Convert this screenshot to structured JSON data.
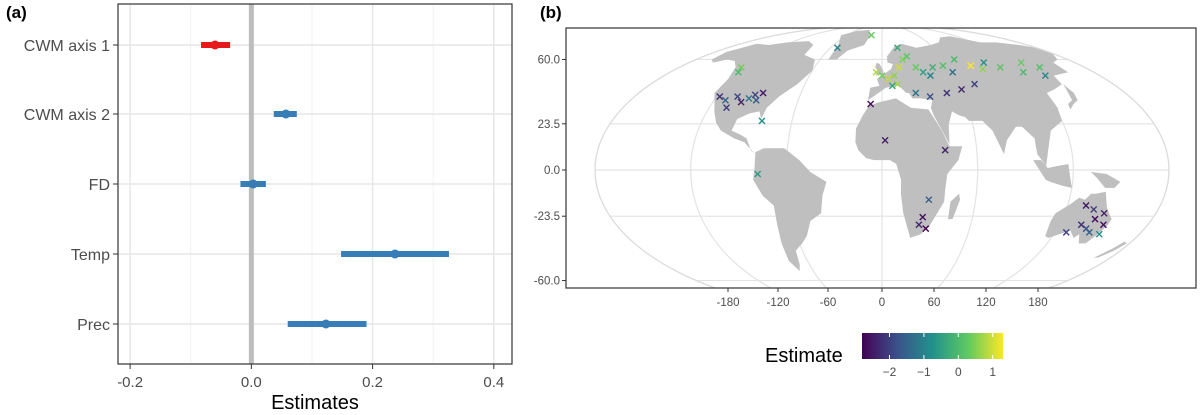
{
  "chart_data": [
    {
      "panel": "(a)",
      "type": "forest",
      "xlabel": "Estimates",
      "xlim": [
        -0.22,
        0.43
      ],
      "xticks": [
        -0.2,
        0.0,
        0.2,
        0.4
      ],
      "xtick_labels": [
        "-0.2",
        "0.0",
        "0.2",
        "0.4"
      ],
      "reference_line": 0.0,
      "grid": true,
      "rows": [
        {
          "label": "CWM axis 1",
          "estimate": -0.06,
          "low": -0.083,
          "high": -0.035,
          "color": "#e41a1c"
        },
        {
          "label": "CWM axis 2",
          "estimate": 0.057,
          "low": 0.037,
          "high": 0.075,
          "color": "#377eb8"
        },
        {
          "label": "FD",
          "estimate": 0.003,
          "low": -0.018,
          "high": 0.024,
          "color": "#377eb8"
        },
        {
          "label": "Temp",
          "estimate": 0.237,
          "low": 0.148,
          "high": 0.326,
          "color": "#377eb8"
        },
        {
          "label": "Prec",
          "estimate": 0.123,
          "low": 0.06,
          "high": 0.19,
          "color": "#377eb8"
        }
      ]
    },
    {
      "panel": "(b)",
      "type": "map",
      "projection": "mollweide",
      "lat_ticks": [
        60.0,
        23.5,
        0.0,
        -23.5,
        -60.0
      ],
      "lat_tick_labels": [
        "60.0",
        "23.5",
        "0.0",
        "-23.5",
        "-60.0"
      ],
      "lon_ticks": [
        -180,
        -120,
        -60,
        0,
        60,
        120,
        180
      ],
      "lon_tick_labels": [
        "-180",
        "-120",
        "-60",
        "0",
        "60",
        "120",
        "180"
      ],
      "legend": {
        "title": "Estimate",
        "range": [
          -2.8,
          1.3
        ],
        "ticks": [
          -2,
          -1,
          0,
          1
        ],
        "tick_labels": [
          "−2",
          "−1",
          "0",
          "1"
        ],
        "colors": [
          "#440154",
          "#3b528b",
          "#21918c",
          "#5ec962",
          "#fde725"
        ]
      },
      "points": [
        {
          "lon": -125,
          "lat": 55,
          "value": 0.4
        },
        {
          "lon": -122,
          "lat": 52,
          "value": 0.0
        },
        {
          "lon": -118,
          "lat": 38,
          "value": -2.2
        },
        {
          "lon": -112,
          "lat": 36,
          "value": -1.5
        },
        {
          "lon": -105,
          "lat": 38,
          "value": -1.9
        },
        {
          "lon": -100,
          "lat": 35,
          "value": -2.4
        },
        {
          "lon": -96,
          "lat": 37,
          "value": -1.2
        },
        {
          "lon": -93,
          "lat": 39,
          "value": -2.0
        },
        {
          "lon": -90,
          "lat": 36,
          "value": -1.6
        },
        {
          "lon": -88,
          "lat": 40,
          "value": -2.5
        },
        {
          "lon": -108,
          "lat": 32,
          "value": -2.1
        },
        {
          "lon": -80,
          "lat": 25,
          "value": -0.8
        },
        {
          "lon": -78,
          "lat": -2,
          "value": -0.6
        },
        {
          "lon": -52,
          "lat": 68,
          "value": -1.0
        },
        {
          "lon": -18,
          "lat": 78,
          "value": 0.3
        },
        {
          "lon": -5,
          "lat": 52,
          "value": 0.8
        },
        {
          "lon": 0,
          "lat": 50,
          "value": 0.4
        },
        {
          "lon": 5,
          "lat": 48,
          "value": 0.9
        },
        {
          "lon": 10,
          "lat": 50,
          "value": 0.6
        },
        {
          "lon": 15,
          "lat": 55,
          "value": 1.0
        },
        {
          "lon": 20,
          "lat": 60,
          "value": 0.5
        },
        {
          "lon": 25,
          "lat": 62,
          "value": 0.2
        },
        {
          "lon": 18,
          "lat": 68,
          "value": -0.3
        },
        {
          "lon": 12,
          "lat": 45,
          "value": 0.7
        },
        {
          "lon": 8,
          "lat": 44,
          "value": -0.4
        },
        {
          "lon": 30,
          "lat": 55,
          "value": 0.3
        },
        {
          "lon": 35,
          "lat": 52,
          "value": -0.5
        },
        {
          "lon": 40,
          "lat": 50,
          "value": -1.0
        },
        {
          "lon": 45,
          "lat": 55,
          "value": -0.2
        },
        {
          "lon": 55,
          "lat": 56,
          "value": 0.1
        },
        {
          "lon": 60,
          "lat": 52,
          "value": -1.3
        },
        {
          "lon": 70,
          "lat": 60,
          "value": 0.0
        },
        {
          "lon": 80,
          "lat": 56,
          "value": 1.3
        },
        {
          "lon": 88,
          "lat": 54,
          "value": 0.6
        },
        {
          "lon": 95,
          "lat": 58,
          "value": -0.8
        },
        {
          "lon": 105,
          "lat": 55,
          "value": 0.2
        },
        {
          "lon": 120,
          "lat": 52,
          "value": 0.0
        },
        {
          "lon": 130,
          "lat": 58,
          "value": 0.3
        },
        {
          "lon": 140,
          "lat": 55,
          "value": 0.1
        },
        {
          "lon": 135,
          "lat": 50,
          "value": -0.9
        },
        {
          "lon": 25,
          "lat": 40,
          "value": -1.2
        },
        {
          "lon": 35,
          "lat": 38,
          "value": -1.8
        },
        {
          "lon": 48,
          "lat": 40,
          "value": -2.2
        },
        {
          "lon": 60,
          "lat": 42,
          "value": -2.4
        },
        {
          "lon": 72,
          "lat": 45,
          "value": -2.0
        },
        {
          "lon": -8,
          "lat": 34,
          "value": -2.7
        },
        {
          "lon": 2,
          "lat": 15,
          "value": -2.5
        },
        {
          "lon": 30,
          "lat": -15,
          "value": -1.6
        },
        {
          "lon": 27,
          "lat": -24,
          "value": -2.6
        },
        {
          "lon": 25,
          "lat": -28,
          "value": -2.3
        },
        {
          "lon": 30,
          "lat": -30,
          "value": -2.8
        },
        {
          "lon": 40,
          "lat": 10,
          "value": -2.4
        },
        {
          "lon": 138,
          "lat": -20,
          "value": -2.1
        },
        {
          "lon": 142,
          "lat": -25,
          "value": -2.7
        },
        {
          "lon": 146,
          "lat": -22,
          "value": -2.4
        },
        {
          "lon": 140,
          "lat": -30,
          "value": -1.8
        },
        {
          "lon": 150,
          "lat": -28,
          "value": -2.6
        },
        {
          "lon": 135,
          "lat": -28,
          "value": -2.2
        },
        {
          "lon": 132,
          "lat": -18,
          "value": -2.5
        },
        {
          "lon": 144,
          "lat": -32,
          "value": -1.5
        },
        {
          "lon": 128,
          "lat": -32,
          "value": -2.0
        },
        {
          "lon": 152,
          "lat": -33,
          "value": -0.8
        }
      ]
    }
  ]
}
